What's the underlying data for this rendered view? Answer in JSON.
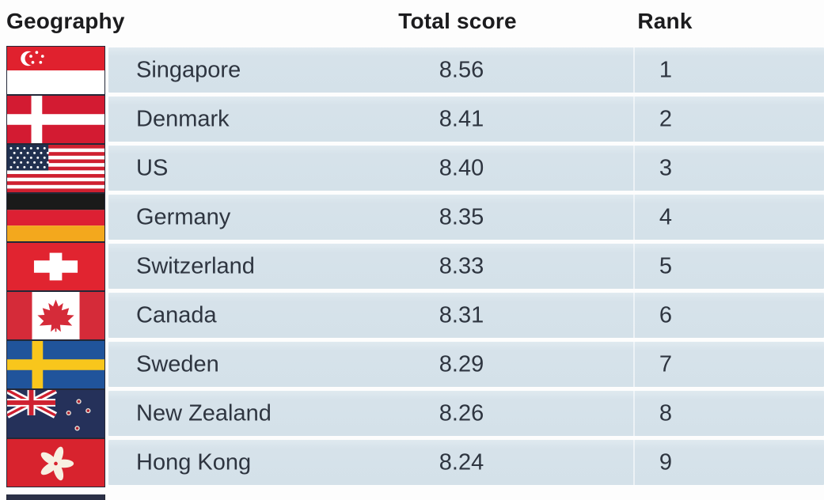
{
  "header": {
    "geography": "Geography",
    "total_score": "Total score",
    "rank": "Rank"
  },
  "rows": [
    {
      "country": "Singapore",
      "score": "8.56",
      "rank": "1",
      "flag": "sg"
    },
    {
      "country": "Denmark",
      "score": "8.41",
      "rank": "2",
      "flag": "dk"
    },
    {
      "country": "US",
      "score": "8.40",
      "rank": "3",
      "flag": "us"
    },
    {
      "country": "Germany",
      "score": "8.35",
      "rank": "4",
      "flag": "de"
    },
    {
      "country": "Switzerland",
      "score": "8.33",
      "rank": "5",
      "flag": "ch"
    },
    {
      "country": "Canada",
      "score": "8.31",
      "rank": "6",
      "flag": "ca"
    },
    {
      "country": "Sweden",
      "score": "8.29",
      "rank": "7",
      "flag": "se"
    },
    {
      "country": "New Zealand",
      "score": "8.26",
      "rank": "8",
      "flag": "nz"
    },
    {
      "country": "Hong Kong",
      "score": "8.24",
      "rank": "9",
      "flag": "hk"
    }
  ],
  "colors": {
    "row_band": "#d6e2ea",
    "row_text": "#2e3540",
    "header_text": "#1c1c1e",
    "background": "#fdfdfd",
    "flag_red": "#d8232e",
    "flag_navy": "#25315a"
  },
  "chart_data": {
    "type": "table",
    "title": "",
    "columns": [
      "Geography",
      "Total score",
      "Rank"
    ],
    "categories": [
      "Singapore",
      "Denmark",
      "US",
      "Germany",
      "Switzerland",
      "Canada",
      "Sweden",
      "New Zealand",
      "Hong Kong"
    ],
    "series": [
      {
        "name": "Total score",
        "values": [
          8.56,
          8.41,
          8.4,
          8.35,
          8.33,
          8.31,
          8.29,
          8.26,
          8.24
        ]
      },
      {
        "name": "Rank",
        "values": [
          1,
          2,
          3,
          4,
          5,
          6,
          7,
          8,
          9
        ]
      }
    ]
  }
}
